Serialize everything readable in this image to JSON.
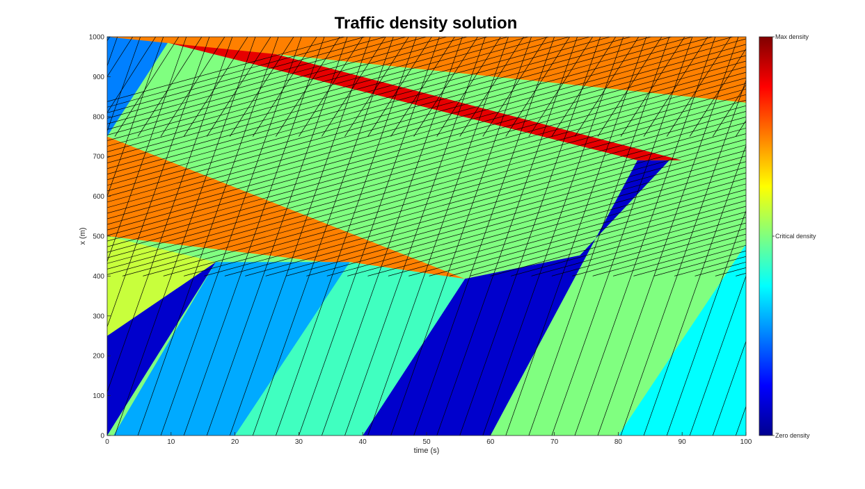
{
  "chart_data": {
    "type": "heatmap",
    "title": "Traffic density solution",
    "xlabel": "time (s)",
    "ylabel": "x (m)",
    "xlim": [
      0,
      100
    ],
    "ylim": [
      0,
      1000
    ],
    "xticks": [
      "0",
      "10",
      "20",
      "30",
      "40",
      "50",
      "60",
      "70",
      "80",
      "90",
      "100"
    ],
    "yticks": [
      "0",
      "100",
      "200",
      "300",
      "400",
      "500",
      "600",
      "700",
      "800",
      "900",
      "1000"
    ],
    "grid": false,
    "colorbar": {
      "colormap": "jet",
      "labels": [
        {
          "text": "Max density",
          "level": 1.0
        },
        {
          "text": "Critical density",
          "level": 0.5
        },
        {
          "text": "Zero density",
          "level": 0.0
        }
      ]
    },
    "regions": [
      {
        "level": 0.22,
        "color": "#0080FF",
        "points": [
          [
            0,
            1000
          ],
          [
            7.5,
            1000
          ],
          [
            9.5,
            985
          ],
          [
            0,
            750
          ]
        ]
      },
      {
        "level": 0.96,
        "color": "#E60000",
        "points": [
          [
            0,
            1000
          ],
          [
            16,
            1000
          ],
          [
            100,
            648
          ],
          [
            100,
            690
          ],
          [
            83,
            690
          ],
          [
            9.5,
            985
          ],
          [
            7.5,
            1000
          ]
        ]
      },
      {
        "level": 0.78,
        "color": "#FF8000",
        "points": [
          [
            16,
            1000
          ],
          [
            100,
            1000
          ],
          [
            100,
            835
          ],
          [
            0,
            1000
          ]
        ]
      },
      {
        "level": 0.78,
        "color": "#FF8000",
        "points": [
          [
            0,
            750
          ],
          [
            0,
            500
          ],
          [
            56,
            393
          ],
          [
            74,
            452
          ],
          [
            59,
            460
          ],
          [
            0,
            750
          ]
        ]
      },
      {
        "level": 0.5,
        "color": "#80FF80",
        "points": [
          [
            0,
            750
          ],
          [
            9.5,
            985
          ],
          [
            83,
            690
          ],
          [
            74,
            452
          ],
          [
            56,
            393
          ],
          [
            0,
            750
          ]
        ]
      },
      {
        "level": 0.5,
        "color": "#80FF80",
        "points": [
          [
            40,
            0
          ],
          [
            59,
            0
          ],
          [
            85,
            690
          ],
          [
            100,
            690
          ],
          [
            100,
            648
          ],
          [
            100,
            0
          ],
          [
            60,
            0
          ],
          [
            56,
            393
          ],
          [
            40,
            0
          ]
        ]
      },
      {
        "level": 0.07,
        "color": "#0000CC",
        "points": [
          [
            0,
            0
          ],
          [
            0,
            250
          ],
          [
            17,
            435
          ],
          [
            0,
            0
          ]
        ]
      },
      {
        "level": 0.07,
        "color": "#0000CC",
        "points": [
          [
            40,
            0
          ],
          [
            60,
            0
          ],
          [
            83,
            690
          ],
          [
            88,
            690
          ],
          [
            74,
            452
          ],
          [
            56,
            393
          ],
          [
            40,
            0
          ]
        ]
      },
      {
        "level": 0.38,
        "color": "#C8FF3C",
        "points": [
          [
            0,
            250
          ],
          [
            0,
            500
          ],
          [
            17,
            435
          ],
          [
            0,
            250
          ]
        ]
      },
      {
        "level": 0.28,
        "color": "#00AAFF",
        "points": [
          [
            1,
            0
          ],
          [
            17,
            435
          ],
          [
            38,
            435
          ],
          [
            20,
            0
          ]
        ]
      },
      {
        "level": 0.42,
        "color": "#40FFC0",
        "points": [
          [
            20,
            0
          ],
          [
            38,
            435
          ],
          [
            56,
            393
          ],
          [
            40,
            0
          ]
        ]
      },
      {
        "level": 0.35,
        "color": "#00FFFF",
        "points": [
          [
            80,
            0
          ],
          [
            100,
            0
          ],
          [
            100,
            480
          ],
          [
            80,
            0
          ]
        ]
      }
    ]
  }
}
